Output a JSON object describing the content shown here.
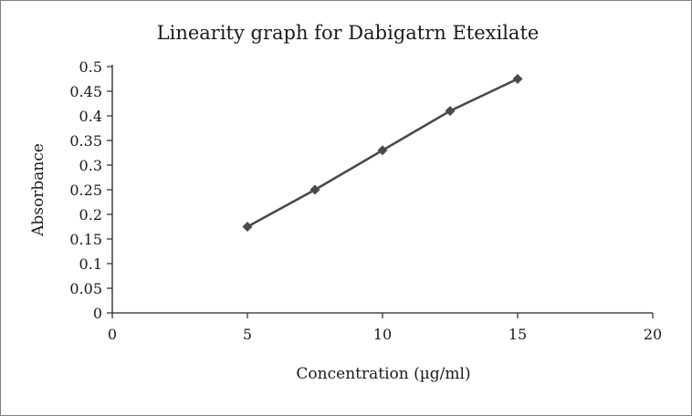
{
  "chart_data": {
    "type": "line",
    "title": "Linearity graph for Dabigatrn Etexilate",
    "xlabel": "Concentration (µg/ml)",
    "ylabel": "Absorbance",
    "x": [
      5,
      7.5,
      10,
      12.5,
      15
    ],
    "y": [
      0.175,
      0.25,
      0.33,
      0.41,
      0.475
    ],
    "xlim": [
      0,
      20
    ],
    "ylim": [
      0,
      0.5
    ],
    "xticks": {
      "values": [
        0,
        5,
        10,
        15,
        20
      ],
      "labels": [
        "0",
        "5",
        "10",
        "15",
        "20"
      ]
    },
    "yticks": {
      "values": [
        0,
        0.05,
        0.1,
        0.15,
        0.2,
        0.25,
        0.3,
        0.35,
        0.4,
        0.45,
        0.5
      ],
      "labels": [
        "0",
        "0.05",
        "0.1",
        "0.15",
        "0.2",
        "0.25",
        "0.3",
        "0.35",
        "0.4",
        "0.45",
        "0.5"
      ]
    },
    "grid": false,
    "legend": "none",
    "marker": "diamond"
  },
  "colors": {
    "line": "#4a4a4a",
    "marker": "#4a4a4a",
    "axis": "#262626",
    "text": "#1a1a1a",
    "border": "#7f7f7f"
  }
}
